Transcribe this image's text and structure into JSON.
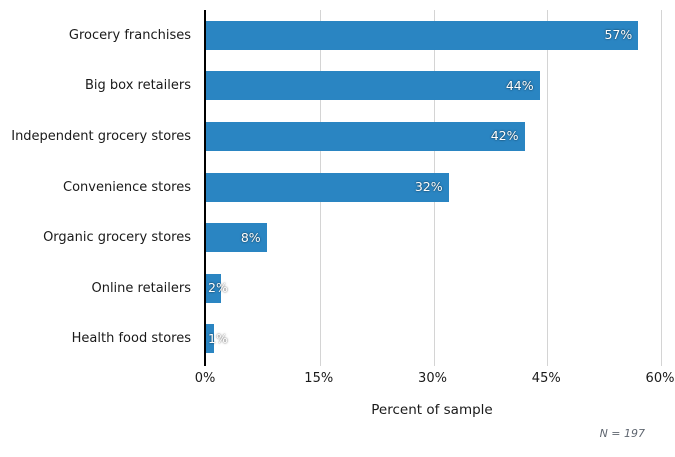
{
  "chart_data": {
    "type": "bar",
    "orientation": "horizontal",
    "categories": [
      "Grocery franchises",
      "Big box retailers",
      "Independent grocery stores",
      "Convenience stores",
      "Organic grocery stores",
      "Online retailers",
      "Health food stores"
    ],
    "values": [
      57,
      44,
      42,
      32,
      8,
      2,
      1
    ],
    "value_labels": [
      "57%",
      "44%",
      "42%",
      "32%",
      "8%",
      "2%",
      "1%"
    ],
    "title": "",
    "xlabel": "Percent of sample",
    "ylabel": "",
    "xlim": [
      0,
      60
    ],
    "xticks": [
      0,
      15,
      30,
      45,
      60
    ],
    "xtick_labels": [
      "0%",
      "15%",
      "30%",
      "45%",
      "60%"
    ],
    "grid": "vertical-gridlines-on",
    "legend": "none",
    "annotation": "N = 197",
    "colors": {
      "bar": "#2A85C2",
      "gridline": "#d4d4d4",
      "axis_line": "#000000",
      "value_label_text": "#ffffff",
      "category_text": "#1a1a1a",
      "note_text": "#5f6670"
    }
  }
}
